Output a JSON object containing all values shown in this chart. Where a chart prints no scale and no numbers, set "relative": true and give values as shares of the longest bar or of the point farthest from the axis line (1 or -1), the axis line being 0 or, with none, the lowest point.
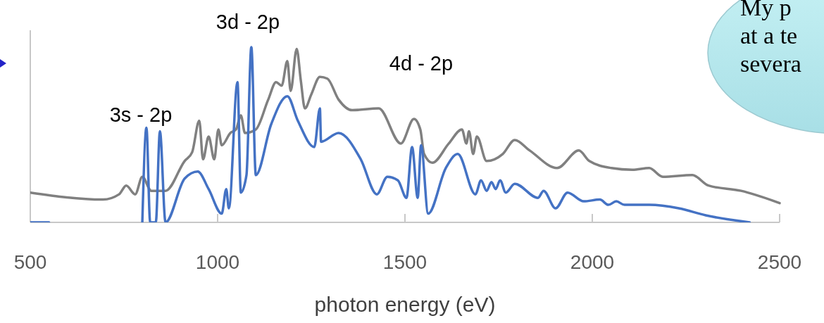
{
  "chart_data": {
    "type": "line",
    "relative": true,
    "xlabel": "photon energy (eV)",
    "xlim": [
      500,
      2500
    ],
    "xticks": [
      500,
      1000,
      1500,
      2000,
      2500
    ],
    "marker": "none",
    "line_style": "solid",
    "annotations": [
      "3s - 2p",
      "3d - 2p",
      "4d - 2p",
      "My p",
      "at a te",
      "severa"
    ],
    "series": [
      {
        "color": "#808080",
        "x": [
          500,
          694,
          737,
          756,
          780,
          799,
          823,
          861,
          912,
          932,
          951,
          961,
          976,
          991,
          1002,
          1011,
          1034,
          1049,
          1062,
          1073,
          1102,
          1135,
          1156,
          1171,
          1186,
          1195,
          1211,
          1222,
          1233,
          1250,
          1273,
          1293,
          1323,
          1359,
          1430,
          1489,
          1524,
          1541,
          1551,
          1573,
          1617,
          1652,
          1664,
          1671,
          1682,
          1692,
          1718,
          1761,
          1793,
          1833,
          1906,
          1964,
          1992,
          2051,
          2107,
          2152,
          2188,
          2267,
          2310,
          2397,
          2487,
          2500
        ],
        "values": [
          0.17,
          0.13,
          0.16,
          0.21,
          0.16,
          0.26,
          0.18,
          0.18,
          0.35,
          0.4,
          0.58,
          0.36,
          0.49,
          0.36,
          0.53,
          0.44,
          0.51,
          0.53,
          0.61,
          0.51,
          0.53,
          0.7,
          0.8,
          0.78,
          0.92,
          0.75,
          0.99,
          0.81,
          0.65,
          0.73,
          0.83,
          0.82,
          0.7,
          0.64,
          0.65,
          0.45,
          0.59,
          0.53,
          0.39,
          0.34,
          0.45,
          0.53,
          0.45,
          0.52,
          0.39,
          0.49,
          0.35,
          0.39,
          0.47,
          0.41,
          0.31,
          0.41,
          0.35,
          0.31,
          0.3,
          0.31,
          0.26,
          0.27,
          0.21,
          0.18,
          0.12,
          0.11
        ]
      },
      {
        "color": "#4472c4",
        "x": [
          500,
          550,
          570,
          799,
          810,
          820,
          835,
          846,
          861,
          912,
          947,
          976,
          1011,
          1023,
          1030,
          1053,
          1062,
          1077,
          1090,
          1102,
          1143,
          1186,
          1214,
          1258,
          1273,
          1276,
          1323,
          1382,
          1425,
          1453,
          1481,
          1504,
          1519,
          1534,
          1543,
          1562,
          1609,
          1641,
          1688,
          1703,
          1718,
          1731,
          1742,
          1754,
          1769,
          1793,
          1855,
          1870,
          1902,
          1934,
          1977,
          2020,
          2043,
          2064,
          2086,
          2152,
          2231,
          2303,
          2420
        ],
        "values": [
          0,
          0,
          null,
          0,
          0.54,
          0,
          0,
          0.52,
          0,
          0.25,
          0.29,
          0.19,
          0.05,
          0.19,
          0.08,
          0.8,
          0.17,
          0.27,
          1,
          0.27,
          0.56,
          0.72,
          0.58,
          0.43,
          0.65,
          0.46,
          0.51,
          0.36,
          0.16,
          0.26,
          0.24,
          0.14,
          0.43,
          0.14,
          0.44,
          0.05,
          0.31,
          0.39,
          0.16,
          0.24,
          0.18,
          0.23,
          0.19,
          0.24,
          0.17,
          0.22,
          0.14,
          0.18,
          0.08,
          0.17,
          0.12,
          0.13,
          0.1,
          0.12,
          0.1,
          0.1,
          0.08,
          0.04,
          0
        ]
      }
    ]
  }
}
